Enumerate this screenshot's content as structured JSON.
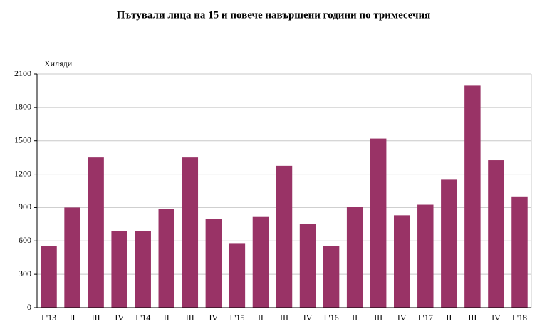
{
  "chart_data": {
    "type": "bar",
    "title": "Пътували лица на 15 и повече навършени години по тримесечия",
    "y_label": "Хиляди",
    "categories": [
      "I '13",
      "II",
      "III",
      "IV",
      "I '14",
      "II",
      "III",
      "IV",
      "I '15",
      "II",
      "III",
      "IV",
      "I '16",
      "II",
      "III",
      "IV",
      "I '17",
      "II",
      "III",
      "IV",
      "I '18"
    ],
    "values": [
      555,
      900,
      1350,
      690,
      690,
      885,
      1350,
      795,
      580,
      815,
      1275,
      755,
      555,
      905,
      1520,
      830,
      925,
      1150,
      1995,
      1325,
      1000
    ],
    "color": "#993366",
    "ylim": [
      0,
      2100
    ],
    "yticks": [
      0,
      300,
      600,
      900,
      1200,
      1500,
      1800,
      2100
    ],
    "grid": true
  }
}
